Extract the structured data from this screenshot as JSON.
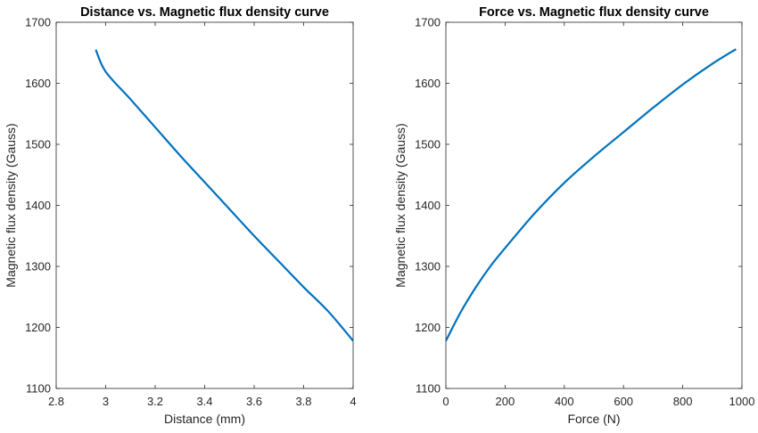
{
  "chart_data": [
    {
      "type": "line",
      "title": "Distance vs. Magnetic flux density curve",
      "xlabel": "Distance (mm)",
      "ylabel": "Magnetic flux density (Gauss)",
      "xlim": [
        2.8,
        4.0
      ],
      "ylim": [
        1100,
        1700
      ],
      "xticks": [
        2.8,
        3.0,
        3.2,
        3.4,
        3.6,
        3.8,
        4.0
      ],
      "xtick_labels": [
        "2.8",
        "3",
        "3.2",
        "3.4",
        "3.6",
        "3.8",
        "4"
      ],
      "yticks": [
        1100,
        1200,
        1300,
        1400,
        1500,
        1600,
        1700
      ],
      "ytick_labels": [
        "1100",
        "1200",
        "1300",
        "1400",
        "1500",
        "1600",
        "1700"
      ],
      "grid": false,
      "color": "#0072BD",
      "series": [
        {
          "x": [
            2.96,
            3.0,
            3.1,
            3.2,
            3.3,
            3.4,
            3.5,
            3.6,
            3.7,
            3.8,
            3.9,
            4.0
          ],
          "y": [
            1655,
            1619,
            1574,
            1528,
            1482,
            1438,
            1394,
            1350,
            1308,
            1266,
            1226,
            1178
          ]
        }
      ]
    },
    {
      "type": "line",
      "title": "Force vs. Magnetic flux density curve",
      "xlabel": "Force (N)",
      "ylabel": "Magnetic flux density (Gauss)",
      "xlim": [
        0,
        1000
      ],
      "ylim": [
        1100,
        1700
      ],
      "xticks": [
        0,
        200,
        400,
        600,
        800,
        1000
      ],
      "xtick_labels": [
        "0",
        "200",
        "400",
        "600",
        "800",
        "1000"
      ],
      "yticks": [
        1100,
        1200,
        1300,
        1400,
        1500,
        1600,
        1700
      ],
      "ytick_labels": [
        "1100",
        "1200",
        "1300",
        "1400",
        "1500",
        "1600",
        "1700"
      ],
      "grid": false,
      "color": "#0072BD",
      "series": [
        {
          "x": [
            0,
            50,
            100,
            150,
            200,
            300,
            400,
            500,
            600,
            700,
            800,
            900,
            980
          ],
          "y": [
            1178,
            1225,
            1265,
            1300,
            1330,
            1387,
            1437,
            1480,
            1520,
            1560,
            1598,
            1632,
            1656
          ]
        }
      ]
    }
  ]
}
